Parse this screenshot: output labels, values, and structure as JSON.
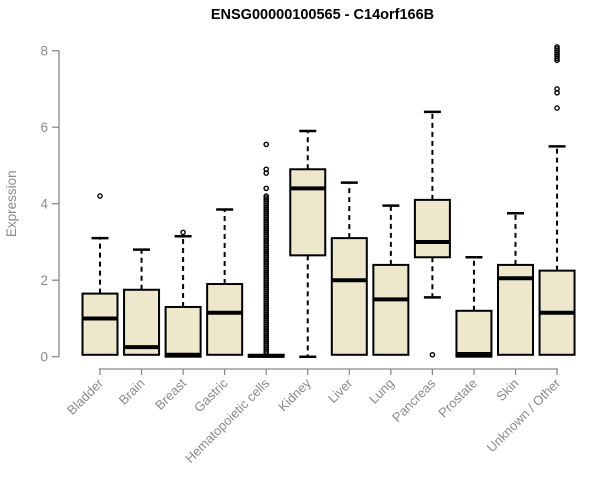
{
  "page": {
    "title": "ENSG00000100565 - C14orf166B"
  },
  "chart_data": {
    "type": "boxplot",
    "title": "ENSG00000100565 - C14orf166B",
    "xlabel": "",
    "ylabel": "Expression",
    "ylim": [
      0,
      8
    ],
    "yticks": [
      0,
      2,
      4,
      6,
      8
    ],
    "grid": false,
    "legend": "none",
    "categories": [
      "Bladder",
      "Brain",
      "Breast",
      "Gastric",
      "Hematopoietic cells",
      "Kidney",
      "Liver",
      "Lung",
      "Pancreas",
      "Prostate",
      "Skin",
      "Unknown / Other"
    ],
    "series": [
      {
        "category": "Bladder",
        "whisker_low": 0.05,
        "q1": 0.05,
        "median": 1.0,
        "q3": 1.65,
        "whisker_high": 3.1,
        "outliers": [
          4.2
        ]
      },
      {
        "category": "Brain",
        "whisker_low": 0.05,
        "q1": 0.05,
        "median": 0.25,
        "q3": 1.75,
        "whisker_high": 2.8,
        "outliers": []
      },
      {
        "category": "Breast",
        "whisker_low": 0.0,
        "q1": 0.0,
        "median": 0.05,
        "q3": 1.3,
        "whisker_high": 3.15,
        "outliers": [
          3.25
        ]
      },
      {
        "category": "Gastric",
        "whisker_low": 0.05,
        "q1": 0.05,
        "median": 1.15,
        "q3": 1.9,
        "whisker_high": 3.85,
        "outliers": []
      },
      {
        "category": "Hematopoietic cells",
        "whisker_low": 0.0,
        "q1": 0.0,
        "median": 0.02,
        "q3": 0.05,
        "whisker_high": 0.05,
        "outliers": [
          4.4,
          4.8,
          4.9,
          5.55
        ],
        "outlier_stack": {
          "from": 0.1,
          "to": 4.2,
          "step": 0.05
        }
      },
      {
        "category": "Kidney",
        "whisker_low": 0.0,
        "q1": 2.65,
        "median": 4.4,
        "q3": 4.9,
        "whisker_high": 5.9,
        "outliers": []
      },
      {
        "category": "Liver",
        "whisker_low": 0.05,
        "q1": 0.05,
        "median": 2.0,
        "q3": 3.1,
        "whisker_high": 4.55,
        "outliers": []
      },
      {
        "category": "Lung",
        "whisker_low": 0.05,
        "q1": 0.05,
        "median": 1.5,
        "q3": 2.4,
        "whisker_high": 3.95,
        "outliers": []
      },
      {
        "category": "Pancreas",
        "whisker_low": 1.55,
        "q1": 2.6,
        "median": 3.0,
        "q3": 4.1,
        "whisker_high": 6.4,
        "outliers": [
          0.05
        ]
      },
      {
        "category": "Prostate",
        "whisker_low": 0.0,
        "q1": 0.0,
        "median": 0.07,
        "q3": 1.2,
        "whisker_high": 2.6,
        "outliers": []
      },
      {
        "category": "Skin",
        "whisker_low": 0.05,
        "q1": 0.05,
        "median": 2.05,
        "q3": 2.4,
        "whisker_high": 3.75,
        "outliers": []
      },
      {
        "category": "Unknown / Other",
        "whisker_low": 0.05,
        "q1": 0.05,
        "median": 1.15,
        "q3": 2.25,
        "whisker_high": 5.5,
        "outliers": [
          6.5,
          6.9,
          7.0
        ],
        "outlier_stack": {
          "from": 7.75,
          "to": 8.1,
          "step": 0.05
        }
      }
    ],
    "colors": {
      "box_fill": "#EDE8CC",
      "box_border": "#000000",
      "median": "#000000",
      "whisker": "#000000",
      "outlier": "#000000",
      "axis": "#888888",
      "axis_text": "#8a8a8a",
      "title": "#000000",
      "background": "#ffffff"
    }
  }
}
